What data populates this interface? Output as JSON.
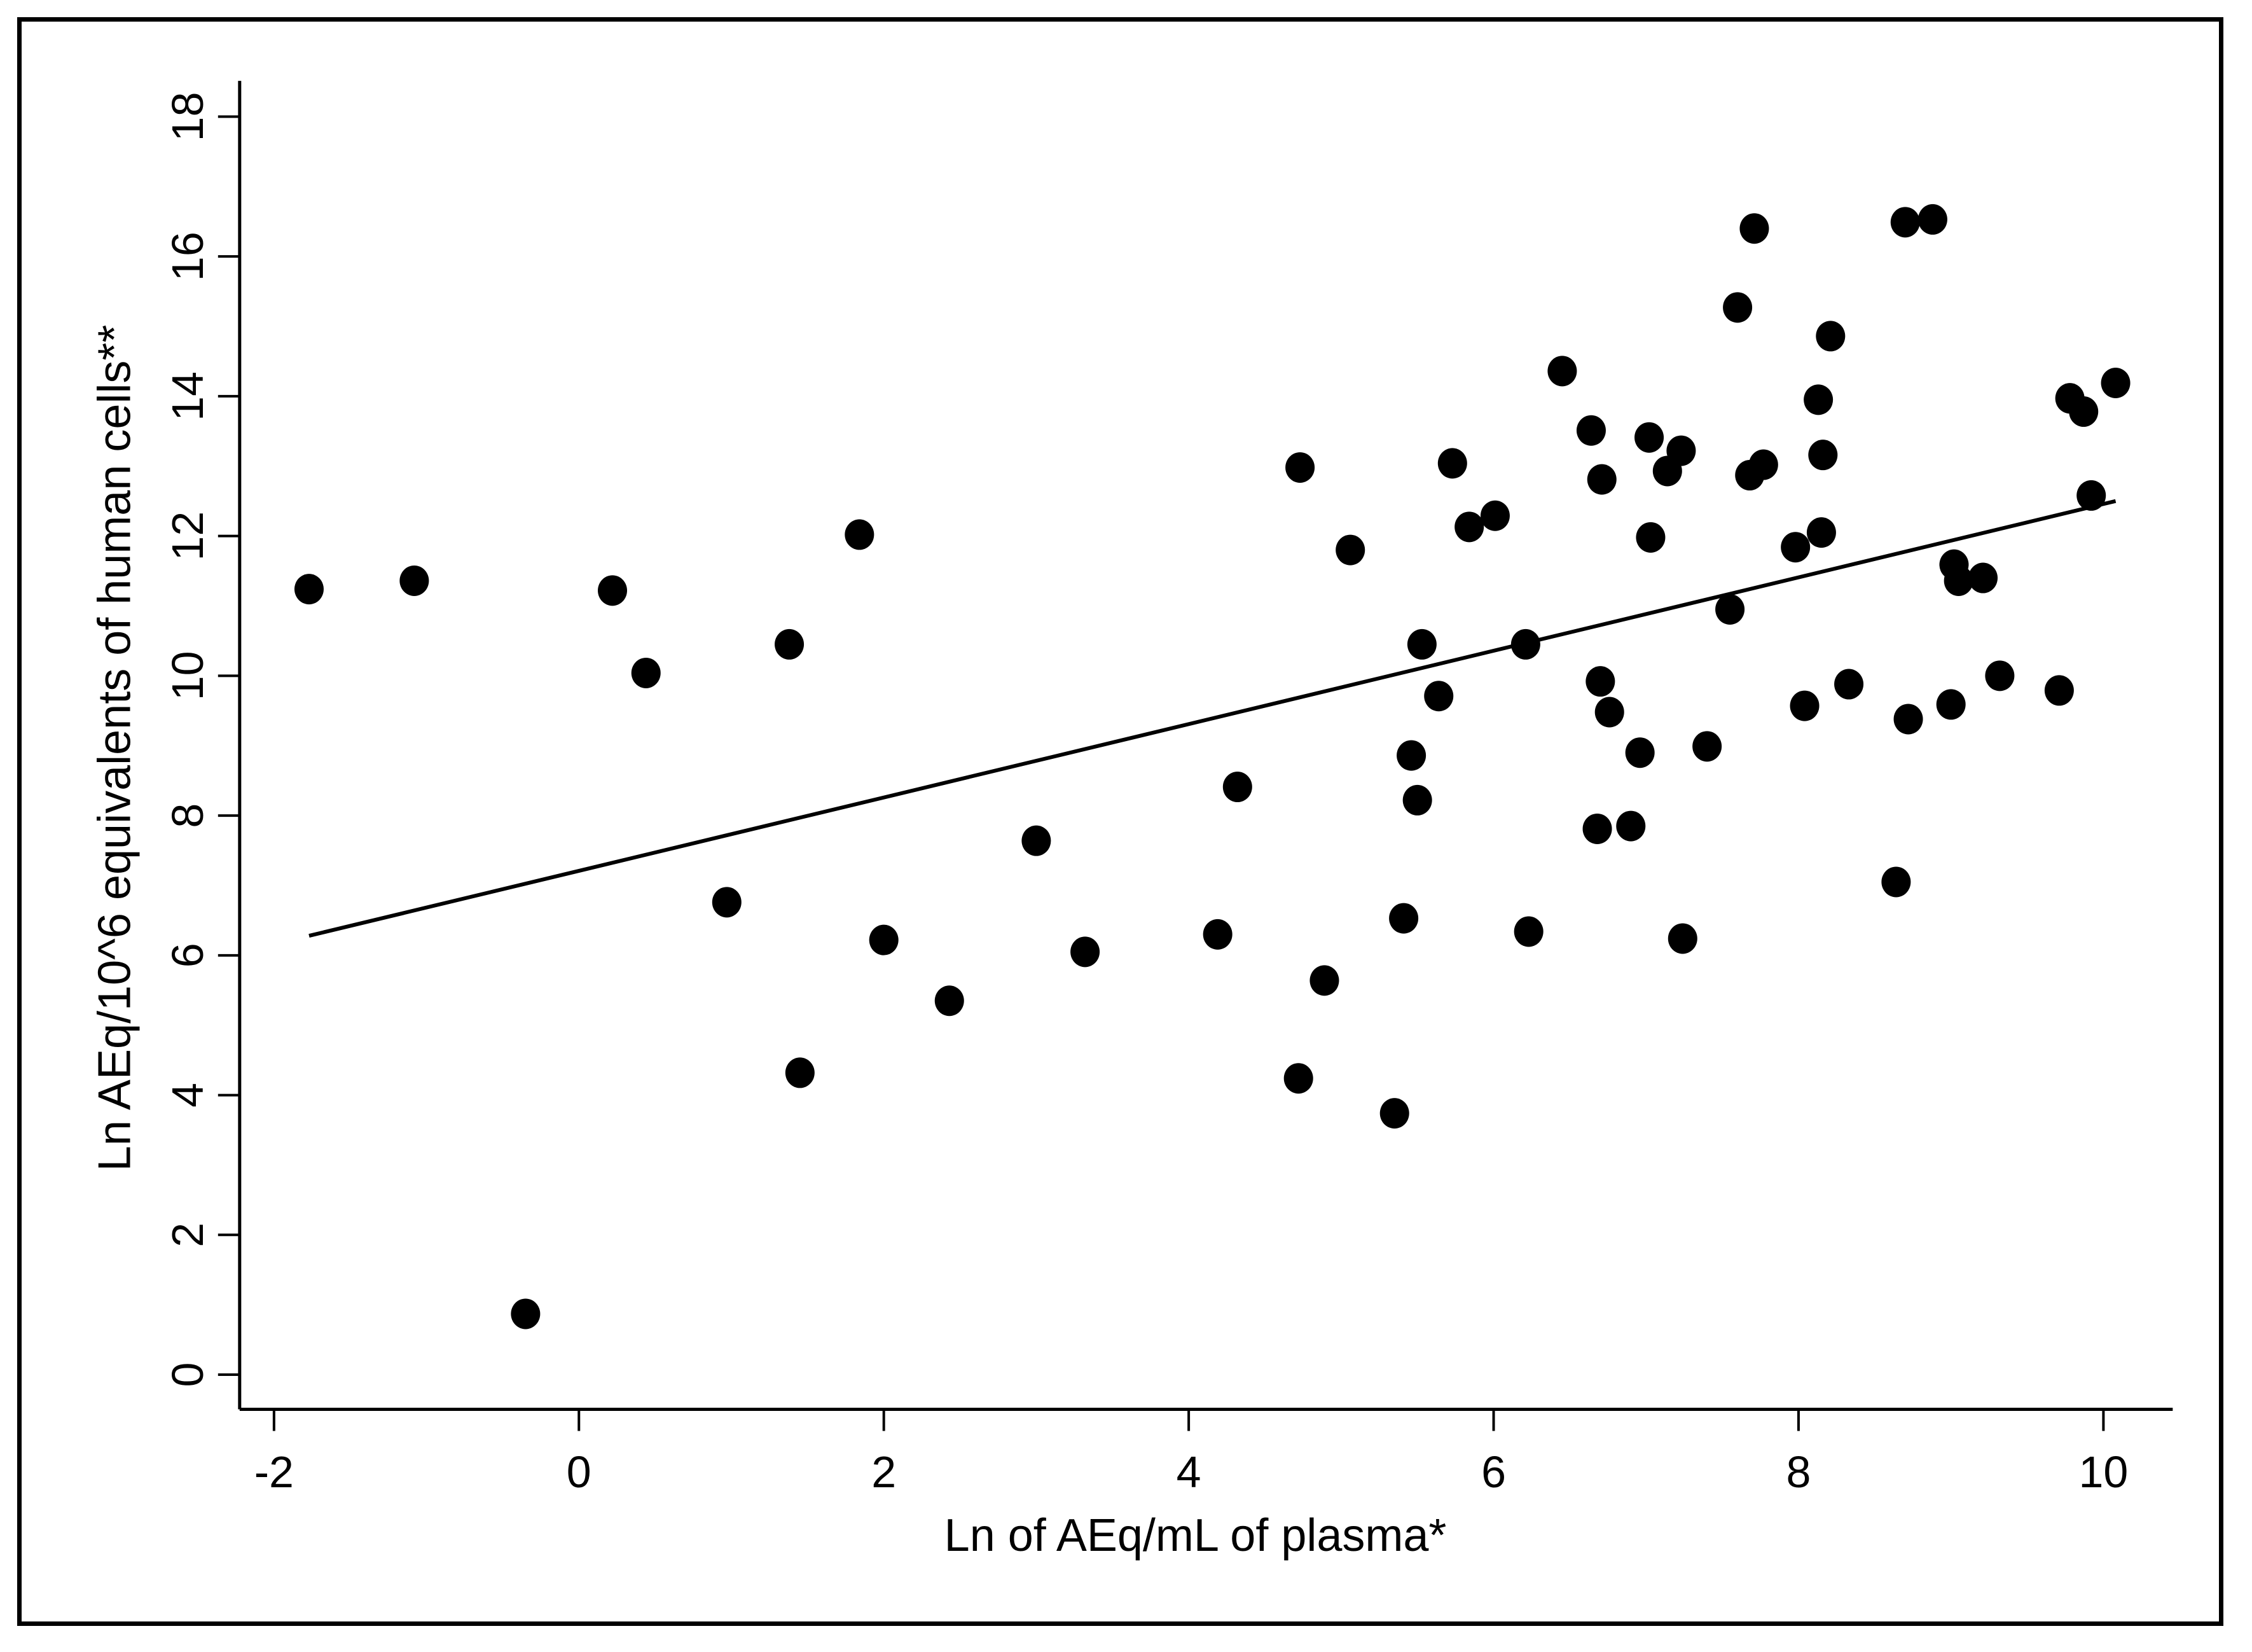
{
  "chart_data": {
    "type": "scatter",
    "title": "",
    "xlabel": "Ln of AEq/mL of plasma*",
    "ylabel": "Ln AEq/10^6 equivalents of human cells**",
    "xlim": [
      -2.2,
      10.5
    ],
    "ylim": [
      -0.5,
      18.5
    ],
    "xticks": [
      -2,
      0,
      2,
      4,
      6,
      8,
      10
    ],
    "yticks": [
      0,
      2,
      4,
      6,
      8,
      10,
      12,
      14,
      16,
      18
    ],
    "grid": false,
    "legend": null,
    "marker_color": "#000000",
    "points": [
      [
        -1.77,
        11.24
      ],
      [
        -1.08,
        11.36
      ],
      [
        -0.35,
        0.87
      ],
      [
        0.22,
        11.22
      ],
      [
        0.44,
        10.04
      ],
      [
        0.97,
        6.76
      ],
      [
        1.38,
        10.45
      ],
      [
        1.45,
        4.32
      ],
      [
        1.84,
        12.02
      ],
      [
        2.0,
        6.22
      ],
      [
        2.43,
        5.35
      ],
      [
        3.0,
        7.64
      ],
      [
        3.32,
        6.05
      ],
      [
        4.19,
        6.3
      ],
      [
        4.32,
        8.41
      ],
      [
        4.72,
        4.24
      ],
      [
        4.73,
        12.98
      ],
      [
        4.89,
        5.64
      ],
      [
        5.06,
        11.8
      ],
      [
        5.35,
        3.74
      ],
      [
        5.41,
        6.53
      ],
      [
        5.46,
        8.86
      ],
      [
        5.5,
        8.22
      ],
      [
        5.53,
        10.45
      ],
      [
        5.64,
        9.71
      ],
      [
        5.73,
        13.04
      ],
      [
        5.84,
        12.13
      ],
      [
        6.01,
        12.29
      ],
      [
        6.21,
        10.45
      ],
      [
        6.23,
        6.34
      ],
      [
        6.45,
        14.36
      ],
      [
        6.64,
        13.51
      ],
      [
        6.68,
        7.81
      ],
      [
        6.7,
        9.92
      ],
      [
        6.71,
        12.81
      ],
      [
        6.76,
        9.48
      ],
      [
        6.9,
        7.85
      ],
      [
        6.96,
        8.9
      ],
      [
        7.02,
        13.41
      ],
      [
        7.03,
        11.98
      ],
      [
        7.14,
        12.93
      ],
      [
        7.23,
        13.22
      ],
      [
        7.24,
        6.24
      ],
      [
        7.4,
        8.99
      ],
      [
        7.55,
        10.95
      ],
      [
        7.6,
        15.27
      ],
      [
        7.68,
        12.87
      ],
      [
        7.71,
        16.4
      ],
      [
        7.77,
        13.02
      ],
      [
        7.98,
        11.84
      ],
      [
        8.04,
        9.57
      ],
      [
        8.13,
        13.95
      ],
      [
        8.15,
        12.05
      ],
      [
        8.16,
        13.16
      ],
      [
        8.21,
        14.86
      ],
      [
        8.33,
        9.88
      ],
      [
        8.64,
        7.05
      ],
      [
        8.7,
        16.49
      ],
      [
        8.72,
        9.38
      ],
      [
        8.88,
        16.53
      ],
      [
        9.0,
        9.59
      ],
      [
        9.02,
        11.59
      ],
      [
        9.05,
        11.36
      ],
      [
        9.21,
        11.4
      ],
      [
        9.32,
        10.0
      ],
      [
        9.71,
        9.79
      ],
      [
        9.78,
        13.97
      ],
      [
        9.87,
        13.78
      ],
      [
        9.92,
        12.58
      ],
      [
        10.08,
        14.19
      ]
    ],
    "fit_line": {
      "x": [
        -1.77,
        10.08
      ],
      "y": [
        6.28,
        12.5
      ]
    }
  }
}
